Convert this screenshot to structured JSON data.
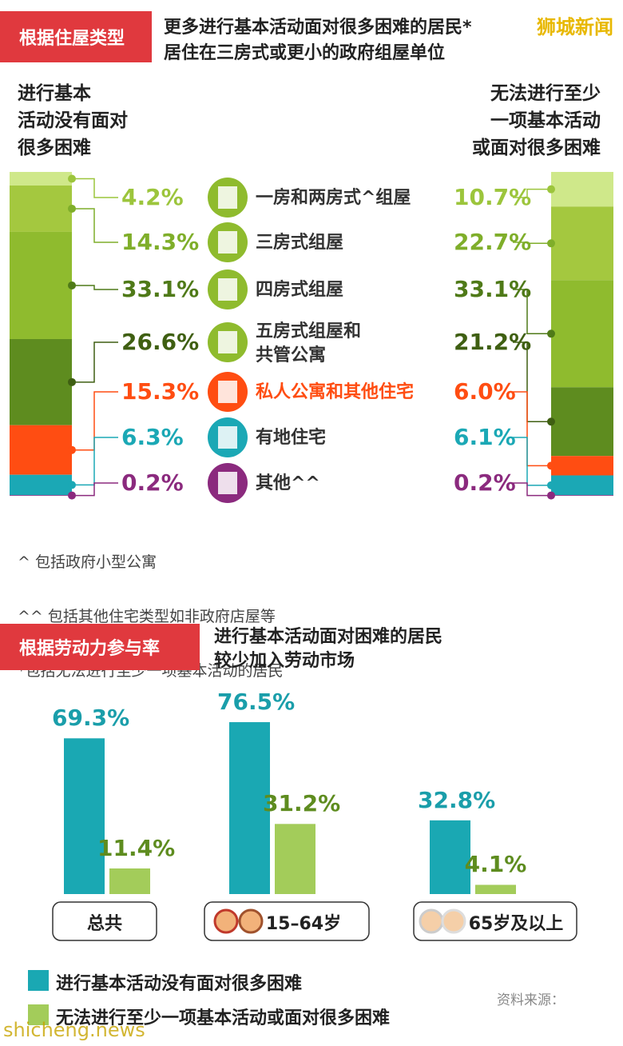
{
  "brand": "狮城新闻",
  "watermark": "shicheng.news",
  "source": "资料来源：",
  "footnotes": [
    "^ 包括政府小型公寓",
    "^^ 包括其他住宅类型如非政府店屋等",
    "*包括无法进行至少一项基本活动的居民"
  ],
  "chart_data": [
    {
      "type": "stacked-column",
      "section": "根据住屋类型",
      "title": "更多进行基本活动面对很多困难的居民*",
      "subtitle": "居住在三房式或更小的政府组屋单位",
      "categories": [
        "一房和两房式^组屋",
        "三房式组屋",
        "四房式组屋",
        "五房式组屋和\n共管公寓",
        "私人公寓和其他住宅",
        "有地住宅",
        "其他^^"
      ],
      "colors": [
        "#cfe88a",
        "#a4c83f",
        "#8fbb2e",
        "#5e8c1f",
        "#ff4d12",
        "#1ba8b5",
        "#8b2a7e"
      ],
      "label_colors": [
        "#9cc53c",
        "#7fae2a",
        "#4f7a18",
        "#3f5f12",
        "#ff4d12",
        "#1ba8b5",
        "#8b2a7e"
      ],
      "series": [
        {
          "name": "进行基本\n活动没有面对\n很多困难",
          "values": [
            4.2,
            14.3,
            33.1,
            26.6,
            15.3,
            6.3,
            0.2
          ],
          "value_labels": [
            "4.2%",
            "14.3%",
            "33.1%",
            "26.6%",
            "15.3%",
            "6.3%",
            "0.2%"
          ]
        },
        {
          "name": "无法进行至少\n一项基本活动\n或面对很多困难",
          "values": [
            10.7,
            22.7,
            33.1,
            21.2,
            6.0,
            6.1,
            0.2
          ],
          "value_labels": [
            "10.7%",
            "22.7%",
            "33.1%",
            "21.2%",
            "6.0%",
            "6.1%",
            "0.2%"
          ]
        }
      ]
    },
    {
      "type": "bar",
      "section": "根据劳动力参与率",
      "title": "进行基本活动面对困难的居民\n较少加入劳动市场",
      "categories": [
        "总共",
        "15–64岁",
        "65岁及以上"
      ],
      "series": [
        {
          "name": "进行基本活动没有面对很多困难",
          "color": "#1aa8b3",
          "text_color": "#1a9eaa",
          "values": [
            69.3,
            76.5,
            32.8
          ],
          "value_labels": [
            "69.3%",
            "76.5%",
            "32.8%"
          ]
        },
        {
          "name": "无法进行至少一项基本活动或面对很多困难",
          "color": "#a3cc5a",
          "text_color": "#5e8c1f",
          "values": [
            11.4,
            31.2,
            4.1
          ],
          "value_labels": [
            "11.4%",
            "31.2%",
            "4.1%"
          ]
        }
      ]
    }
  ]
}
